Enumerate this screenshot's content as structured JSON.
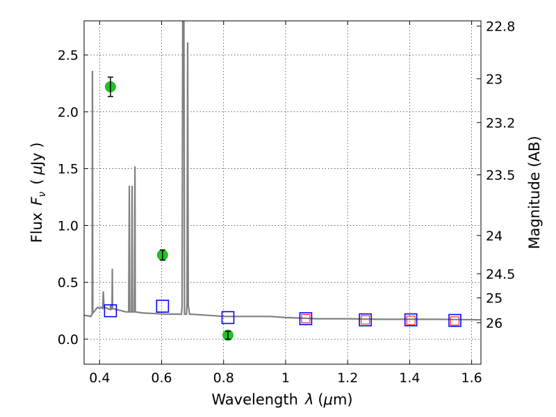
{
  "chart_data": {
    "type": "scatter",
    "title": "",
    "xlabel": "Wavelength",
    "xlabel_symbol": "λ",
    "xlabel_unit_open": "(",
    "xlabel_unit_mu": "μ",
    "xlabel_unit_rest": "m)",
    "ylabel": "Flux",
    "ylabel_symbol": "F",
    "ylabel_symbol_sub": "ν",
    "ylabel_unit_open": "(",
    "ylabel_unit_mu": "μ",
    "ylabel_unit_rest": "Jy )",
    "y2label": "Magnitude (AB)",
    "xlim": [
      0.35,
      1.63
    ],
    "ylim": [
      -0.22,
      2.8
    ],
    "grid": true,
    "x_ticks": [
      {
        "value": 0.4,
        "label": "0.4"
      },
      {
        "value": 0.6,
        "label": "0.6"
      },
      {
        "value": 0.8,
        "label": "0.8"
      },
      {
        "value": 1.0,
        "label": "1"
      },
      {
        "value": 1.2,
        "label": "1.2"
      },
      {
        "value": 1.4,
        "label": "1.4"
      },
      {
        "value": 1.6,
        "label": "1.6"
      }
    ],
    "y_ticks": [
      {
        "value": 0.0,
        "label": "0.0"
      },
      {
        "value": 0.5,
        "label": "0.5"
      },
      {
        "value": 1.0,
        "label": "1.0"
      },
      {
        "value": 1.5,
        "label": "1.5"
      },
      {
        "value": 2.0,
        "label": "2.0"
      },
      {
        "value": 2.5,
        "label": "2.5"
      }
    ],
    "y2_ticks": [
      {
        "value": 22.8,
        "label": "22.8"
      },
      {
        "value": 23.0,
        "label": "23"
      },
      {
        "value": 23.2,
        "label": "23.2"
      },
      {
        "value": 23.5,
        "label": "23.5"
      },
      {
        "value": 24.0,
        "label": "24"
      },
      {
        "value": 24.5,
        "label": "24.5"
      },
      {
        "value": 25.0,
        "label": "25"
      },
      {
        "value": 26.0,
        "label": "26"
      }
    ],
    "model_spectrum": {
      "color": "#808080",
      "points": [
        [
          0.35,
          0.21
        ],
        [
          0.362,
          0.205
        ],
        [
          0.372,
          0.2
        ],
        [
          0.376,
          0.22
        ],
        [
          0.377,
          2.36
        ],
        [
          0.378,
          0.23
        ],
        [
          0.385,
          0.25
        ],
        [
          0.39,
          0.27
        ],
        [
          0.395,
          0.28
        ],
        [
          0.4,
          0.27
        ],
        [
          0.405,
          0.28
        ],
        [
          0.41,
          0.27
        ],
        [
          0.412,
          0.42
        ],
        [
          0.414,
          0.28
        ],
        [
          0.425,
          0.27
        ],
        [
          0.434,
          0.26
        ],
        [
          0.436,
          0.3
        ],
        [
          0.438,
          0.27
        ],
        [
          0.44,
          0.26
        ],
        [
          0.441,
          0.62
        ],
        [
          0.442,
          0.27
        ],
        [
          0.455,
          0.26
        ],
        [
          0.47,
          0.25
        ],
        [
          0.485,
          0.24
        ],
        [
          0.494,
          0.24
        ],
        [
          0.496,
          1.35
        ],
        [
          0.497,
          0.24
        ],
        [
          0.503,
          0.24
        ],
        [
          0.505,
          1.35
        ],
        [
          0.506,
          0.24
        ],
        [
          0.512,
          0.24
        ],
        [
          0.514,
          1.52
        ],
        [
          0.515,
          0.24
        ],
        [
          0.54,
          0.23
        ],
        [
          0.58,
          0.225
        ],
        [
          0.62,
          0.22
        ],
        [
          0.66,
          0.22
        ],
        [
          0.664,
          0.22
        ],
        [
          0.666,
          0.28
        ],
        [
          0.668,
          2.8
        ],
        [
          0.672,
          2.8
        ],
        [
          0.674,
          0.22
        ],
        [
          0.68,
          0.22
        ],
        [
          0.682,
          0.3
        ],
        [
          0.684,
          2.61
        ],
        [
          0.686,
          0.3
        ],
        [
          0.69,
          0.22
        ],
        [
          0.75,
          0.21
        ],
        [
          0.8,
          0.2
        ],
        [
          0.85,
          0.2
        ],
        [
          0.9,
          0.2
        ],
        [
          0.95,
          0.2
        ],
        [
          1.0,
          0.19
        ],
        [
          1.1,
          0.18
        ],
        [
          1.2,
          0.18
        ],
        [
          1.3,
          0.175
        ],
        [
          1.4,
          0.175
        ],
        [
          1.5,
          0.175
        ],
        [
          1.63,
          0.17
        ]
      ]
    },
    "series": [
      {
        "marker": "open-square",
        "color": "#0000ff",
        "points": [
          {
            "x": 0.435,
            "y": 0.25
          },
          {
            "x": 0.603,
            "y": 0.29
          },
          {
            "x": 0.814,
            "y": 0.19
          },
          {
            "x": 1.065,
            "y": 0.18
          },
          {
            "x": 1.257,
            "y": 0.17
          },
          {
            "x": 1.404,
            "y": 0.17
          },
          {
            "x": 1.546,
            "y": 0.165
          }
        ]
      },
      {
        "marker": "open-square-small",
        "color": "#ff0000",
        "points": [
          {
            "x": 1.065,
            "y": 0.18
          },
          {
            "x": 1.257,
            "y": 0.17
          },
          {
            "x": 1.404,
            "y": 0.165
          },
          {
            "x": 1.546,
            "y": 0.16
          }
        ]
      },
      {
        "marker": "filled-circle-errorbar",
        "color": "#22c02a",
        "points": [
          {
            "x": 0.435,
            "y": 2.22,
            "yerr": 0.085
          },
          {
            "x": 0.603,
            "y": 0.74,
            "yerr": 0.045
          },
          {
            "x": 0.814,
            "y": 0.035,
            "yerr": 0.035
          }
        ]
      }
    ]
  }
}
